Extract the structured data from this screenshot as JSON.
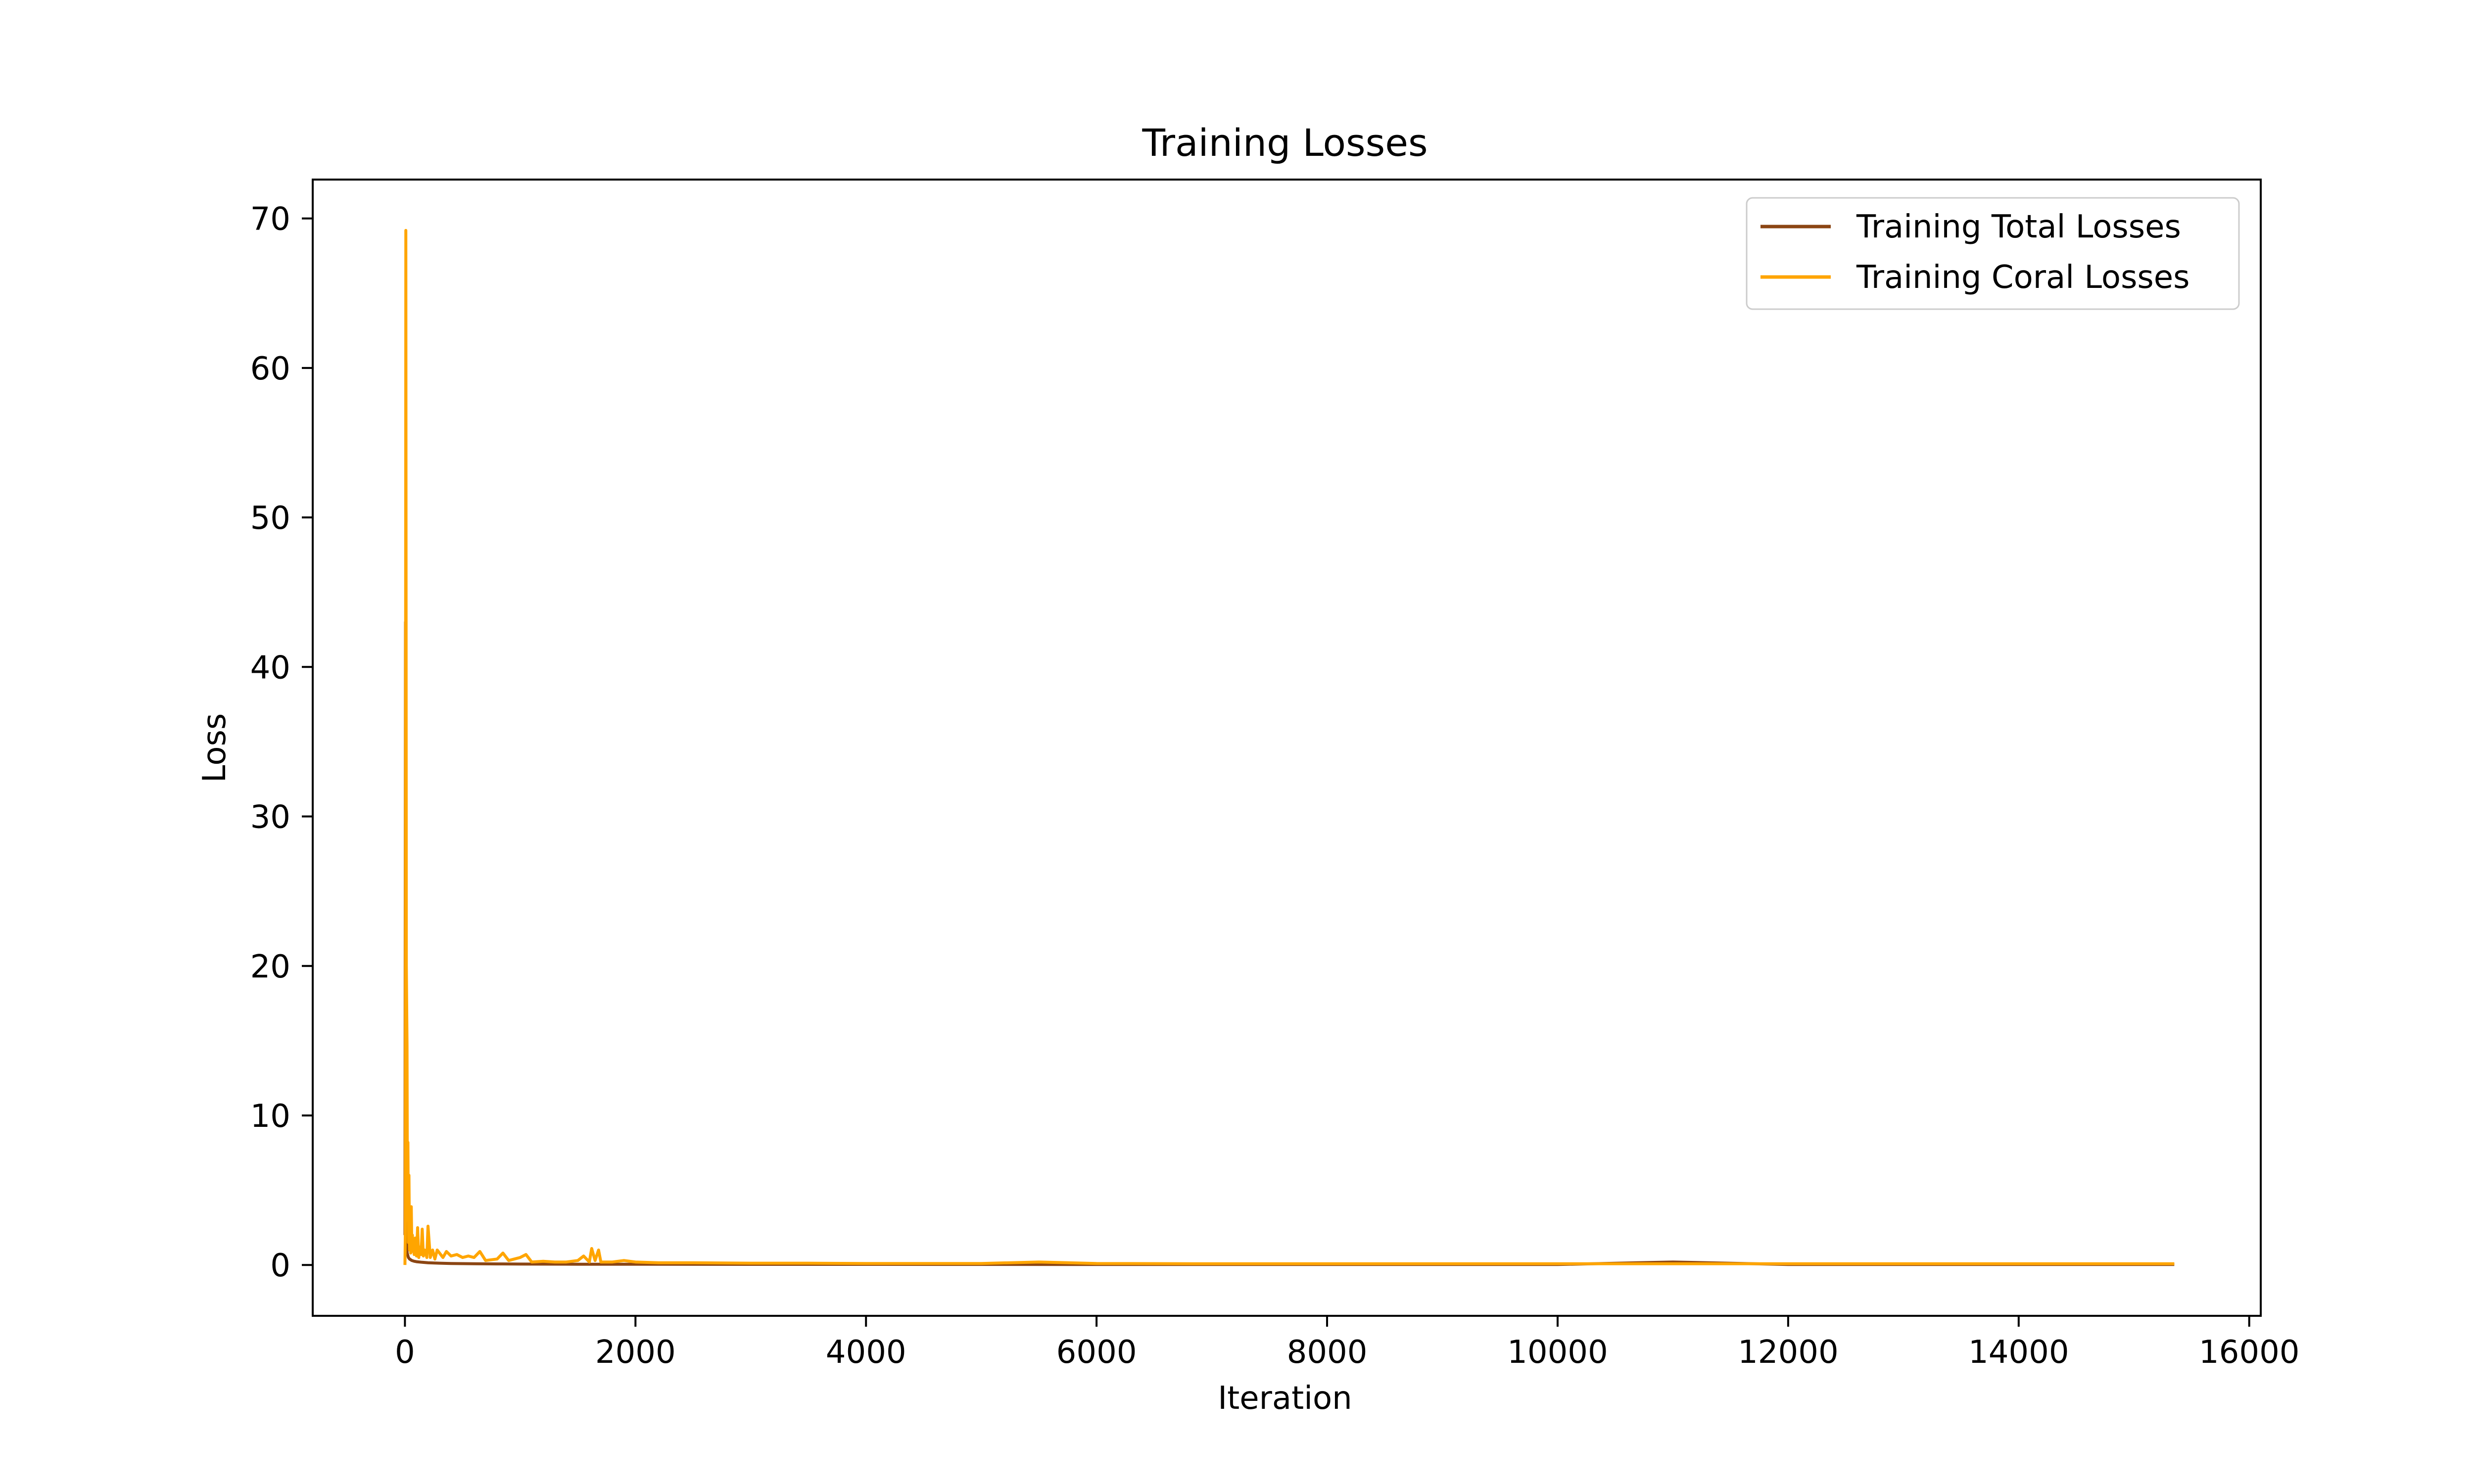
{
  "chart_data": {
    "type": "line",
    "title": "Training Losses",
    "xlabel": "Iteration",
    "ylabel": "Loss",
    "xlim": [
      -800,
      16100
    ],
    "ylim": [
      -3.4,
      72.6
    ],
    "x_ticks": [
      0,
      2000,
      4000,
      6000,
      8000,
      10000,
      12000,
      14000,
      16000
    ],
    "x_tick_labels": [
      "0",
      "2000",
      "4000",
      "6000",
      "8000",
      "10000",
      "12000",
      "14000",
      "16000"
    ],
    "y_ticks": [
      0,
      10,
      20,
      30,
      40,
      50,
      60,
      70
    ],
    "y_tick_labels": [
      "0",
      "10",
      "20",
      "30",
      "40",
      "50",
      "60",
      "70"
    ],
    "grid": false,
    "legend_position": "top-right",
    "series": [
      {
        "name": "Training Total Losses",
        "color": "#8B4513",
        "x": [
          0,
          5,
          10,
          15,
          20,
          30,
          40,
          60,
          80,
          100,
          150,
          200,
          300,
          400,
          600,
          800,
          1000,
          1500,
          2000,
          3000,
          4000,
          6000,
          8000,
          10000,
          11000,
          12000,
          14000,
          15350
        ],
        "y": [
          2.0,
          43.0,
          6.0,
          1.2,
          0.8,
          0.5,
          0.4,
          0.3,
          0.25,
          0.22,
          0.18,
          0.15,
          0.12,
          0.1,
          0.08,
          0.07,
          0.06,
          0.05,
          0.05,
          0.04,
          0.04,
          0.03,
          0.03,
          0.03,
          0.2,
          0.03,
          0.03,
          0.03
        ]
      },
      {
        "name": "Training Coral Losses",
        "color": "#FFA500",
        "x": [
          0,
          3,
          8,
          12,
          18,
          22,
          26,
          30,
          35,
          40,
          45,
          50,
          55,
          60,
          65,
          70,
          75,
          80,
          90,
          100,
          110,
          120,
          130,
          140,
          150,
          160,
          170,
          180,
          190,
          200,
          220,
          240,
          260,
          280,
          300,
          330,
          360,
          400,
          450,
          500,
          550,
          600,
          650,
          700,
          800,
          850,
          900,
          1000,
          1050,
          1100,
          1200,
          1300,
          1400,
          1500,
          1550,
          1600,
          1620,
          1650,
          1680,
          1700,
          1800,
          1900,
          2000,
          2200,
          2500,
          3000,
          3500,
          4000,
          5000,
          5500,
          6000,
          7000,
          8000,
          9000,
          10000,
          11000,
          12000,
          13000,
          14000,
          15000,
          15350
        ],
        "y": [
          0.0,
          2.0,
          69.2,
          20.0,
          14.7,
          3.0,
          8.2,
          1.5,
          6.0,
          1.0,
          3.8,
          0.8,
          3.9,
          1.2,
          2.0,
          0.9,
          1.5,
          0.7,
          1.8,
          0.6,
          2.5,
          0.5,
          1.2,
          0.7,
          2.4,
          0.6,
          1.0,
          0.9,
          0.5,
          2.6,
          0.5,
          1.0,
          0.4,
          1.0,
          0.8,
          0.5,
          0.9,
          0.6,
          0.7,
          0.5,
          0.6,
          0.5,
          0.9,
          0.3,
          0.4,
          0.8,
          0.3,
          0.5,
          0.7,
          0.2,
          0.25,
          0.2,
          0.2,
          0.3,
          0.6,
          0.2,
          1.1,
          0.3,
          1.0,
          0.2,
          0.2,
          0.3,
          0.2,
          0.15,
          0.15,
          0.12,
          0.12,
          0.1,
          0.1,
          0.2,
          0.1,
          0.08,
          0.08,
          0.08,
          0.08,
          0.08,
          0.08,
          0.08,
          0.08,
          0.08,
          0.08
        ]
      }
    ]
  }
}
